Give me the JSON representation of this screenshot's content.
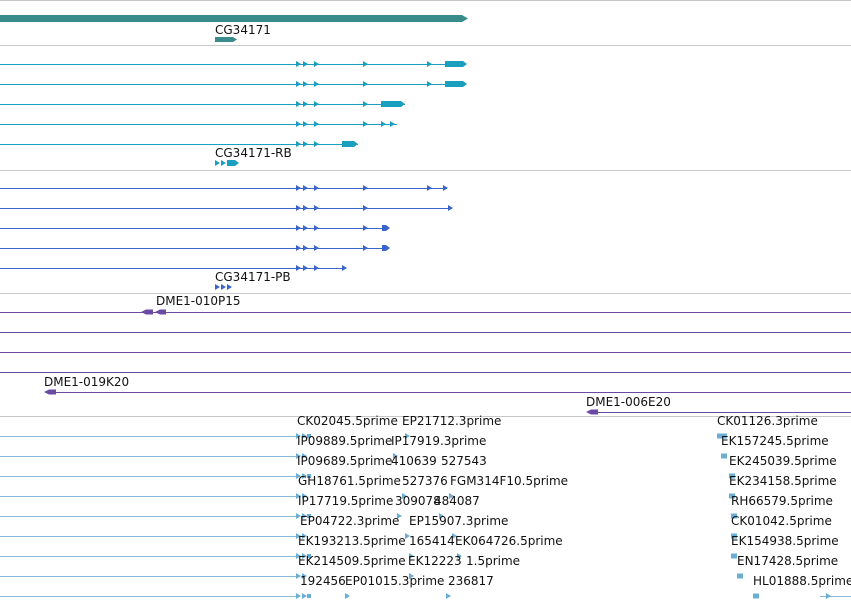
{
  "tracks": {
    "gene": {
      "label": "CG34171",
      "color": "#3a8c8c"
    },
    "rb": {
      "label": "CG34171-RB",
      "color": "#1a9fbf"
    },
    "pb": {
      "label": "CG34171-PB",
      "color": "#3a66cc"
    },
    "clones": {
      "color": "#6a4aa3",
      "labels": [
        "DME1-010P15",
        "DME1-019K20",
        "DME1-006E20"
      ]
    },
    "ests": {
      "color": "#6aaed6",
      "line_color": "#8ab8d8",
      "col1": [
        "CK02045.5prime",
        "IP09889.5prime",
        "IP09689.5prime",
        "GH18761.5prime",
        "IP17719.5prime",
        "EP04722.3prime",
        "EK193213.5prime",
        "EK214509.5prime",
        "192456"
      ],
      "col2": [
        "EP21712.3prime",
        "IP17919.3prime",
        "410639",
        "527376",
        "309078",
        "EP15907.3prime",
        "165414",
        "EK12223",
        "EP01015.3prime"
      ],
      "col3": [
        "",
        "",
        "527543",
        "FGM314F10.5prime",
        "484087",
        "",
        "EK064726.5prime",
        "1.5prime",
        "236817"
      ],
      "col4": [
        "CK01126.3prime",
        "EK157245.5prime",
        "EK245039.5prime",
        "EK234158.5prime",
        "RH66579.5prime",
        "CK01042.5prime",
        "EK154938.5prime",
        "EN17428.5prime",
        "HL01888.5prime"
      ]
    }
  }
}
